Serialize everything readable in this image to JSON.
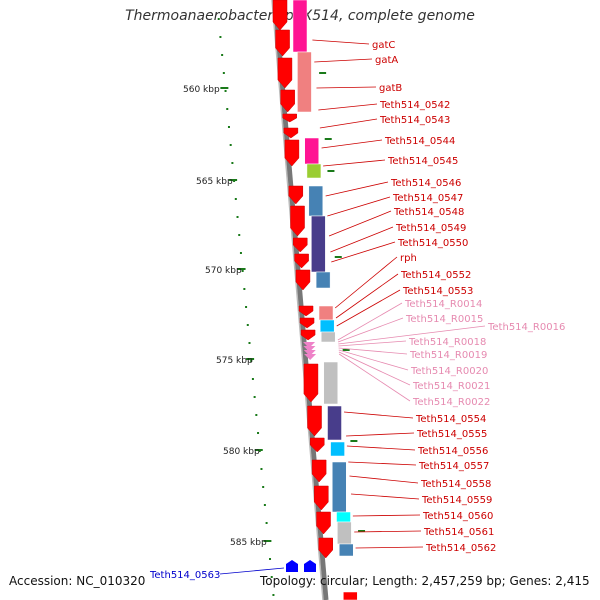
{
  "title": "Thermoanaerobacter sp. X514, complete genome",
  "accession": "Accession: NC_010320",
  "topology": "Topology: circular; Length: 2,457,259 bp; Genes: 2,415",
  "colors": {
    "gene_label": "#cc0000",
    "rna_label": "#e68ab0",
    "reverse_label": "#0000cc",
    "backbone": "#7f7f7f",
    "tick": "#1a7a1a",
    "forward_arrow": "#ff0000",
    "reverse_arrow": "#0000ff"
  },
  "kbp_labels": [
    "560 kbp",
    "565 kbp",
    "570 kbp",
    "575 kbp",
    "580 kbp",
    "585 kbp"
  ],
  "gene_labels": [
    "gatC",
    "gatA",
    "gatB",
    "Teth514_0542",
    "Teth514_0543",
    "Teth514_0544",
    "Teth514_0545",
    "Teth514_0546",
    "Teth514_0547",
    "Teth514_0548",
    "Teth514_0549",
    "Teth514_0550",
    "rph",
    "Teth514_0552",
    "Teth514_0553",
    "Teth514_R0014",
    "Teth514_R0015",
    "Teth514_R0016",
    "Teth514_R0018",
    "Teth514_R0019",
    "Teth514_R0020",
    "Teth514_R0021",
    "Teth514_R0022",
    "Teth514_0554",
    "Teth514_0555",
    "Teth514_0556",
    "Teth514_0557",
    "Teth514_0558",
    "Teth514_0559",
    "Teth514_0560",
    "Teth514_0561",
    "Teth514_0562"
  ],
  "reverse_gene_label": "Teth514_0563"
}
